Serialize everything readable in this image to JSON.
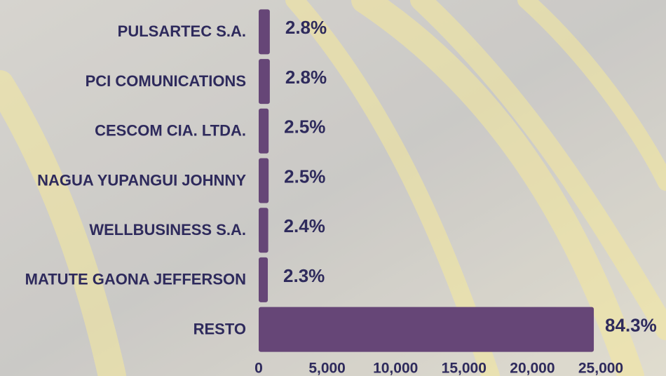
{
  "chart_data": {
    "type": "hbar",
    "categories": [
      "PULSARTEC S.A.",
      "PCI COMUNICATIONS",
      "CESCOM CIA. LTDA.",
      "NAGUA YUPANGUI JOHNNY",
      "WELLBUSINESS S.A.",
      "MATUTE GAONA JEFFERSON",
      "RESTO"
    ],
    "values": [
      813,
      813,
      726,
      726,
      697,
      668,
      24490
    ],
    "share_labels": [
      "2.8%",
      "2.8%",
      "2.5%",
      "2.5%",
      "2.4%",
      "2.3%",
      "84.3%"
    ],
    "color": "#664677",
    "xlim": [
      0,
      25000
    ],
    "xticks": [
      0,
      {
        "value": 5000,
        "label": "5,000"
      },
      {
        "value": 10000,
        "label": "10,000"
      },
      {
        "value": 15000,
        "label": "15,000"
      },
      {
        "value": 20000,
        "label": "20,000"
      },
      {
        "value": 25000,
        "label": "25,000"
      }
    ]
  }
}
